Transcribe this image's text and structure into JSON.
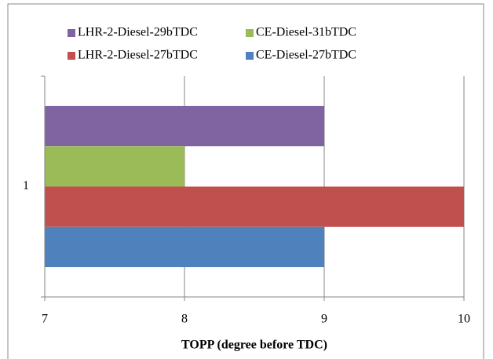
{
  "chart_data": {
    "type": "bar",
    "orientation": "horizontal",
    "categories": [
      "1"
    ],
    "series": [
      {
        "name": "LHR-2-Diesel-29bTDC",
        "color": "#8064a2",
        "values": [
          9
        ]
      },
      {
        "name": "CE-Diesel-31bTDC",
        "color": "#9bbb59",
        "values": [
          8
        ]
      },
      {
        "name": "LHR-2-Diesel-27bTDC",
        "color": "#c0504d",
        "values": [
          10
        ]
      },
      {
        "name": "CE-Diesel-27bTDC",
        "color": "#4f81bd",
        "values": [
          9
        ]
      }
    ],
    "x_label": "TOPP (degree before TDC)",
    "xlim": [
      7,
      10
    ],
    "xticks": [
      7,
      8,
      9,
      10
    ],
    "grid": true,
    "legend": "top"
  }
}
